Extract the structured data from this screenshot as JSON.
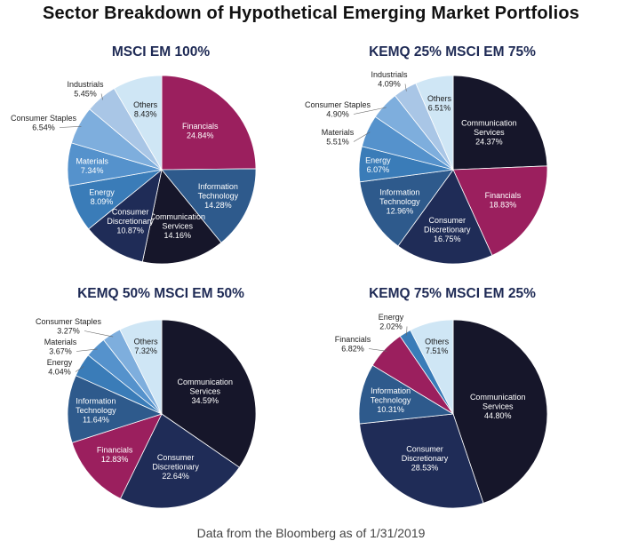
{
  "title": "Sector Breakdown of Hypothetical Emerging Market Portfolios",
  "footer": "Data from the Bloomberg as of 1/31/2019",
  "colors": {
    "Financials": "#9b1f5e",
    "Information Technology": "#2e5a8c",
    "Communication Services": "#16162a",
    "Consumer Discretionary": "#1f2c57",
    "Energy": "#3a7cb8",
    "Materials": "#5592cc",
    "Consumer Staples": "#7eaedd",
    "Industrials": "#a9c6e6",
    "Others": "#cfe6f5"
  },
  "chart_data": [
    {
      "type": "pie",
      "title": "MSCI EM 100%",
      "slices": [
        {
          "name": "Financials",
          "label": [
            "Financials"
          ],
          "value": 24.84,
          "pct": "24.84%"
        },
        {
          "name": "Information Technology",
          "label": [
            "Information",
            "Technology"
          ],
          "value": 14.28,
          "pct": "14.28%"
        },
        {
          "name": "Communication Services",
          "label": [
            "Communication",
            "Services"
          ],
          "value": 14.16,
          "pct": "14.16%"
        },
        {
          "name": "Consumer Discretionary",
          "label": [
            "Consumer",
            "Discretionary"
          ],
          "value": 10.87,
          "pct": "10.87%"
        },
        {
          "name": "Energy",
          "label": [
            "Energy"
          ],
          "value": 8.09,
          "pct": "8.09%"
        },
        {
          "name": "Materials",
          "label": [
            "Materials"
          ],
          "value": 7.34,
          "pct": "7.34%"
        },
        {
          "name": "Consumer Staples",
          "label": [
            "Consumer Staples"
          ],
          "value": 6.54,
          "pct": "6.54%"
        },
        {
          "name": "Industrials",
          "label": [
            "Industrials"
          ],
          "value": 5.45,
          "pct": "5.45%"
        },
        {
          "name": "Others",
          "label": [
            "Others"
          ],
          "value": 8.43,
          "pct": "8.43%"
        }
      ]
    },
    {
      "type": "pie",
      "title": "KEMQ 25% MSCI EM 75%",
      "slices": [
        {
          "name": "Communication Services",
          "label": [
            "Communication",
            "Services"
          ],
          "value": 24.37,
          "pct": "24.37%"
        },
        {
          "name": "Financials",
          "label": [
            "Financials"
          ],
          "value": 18.83,
          "pct": "18.83%"
        },
        {
          "name": "Consumer Discretionary",
          "label": [
            "Consumer",
            "Discretionary"
          ],
          "value": 16.75,
          "pct": "16.75%"
        },
        {
          "name": "Information Technology",
          "label": [
            "Information",
            "Technology"
          ],
          "value": 12.96,
          "pct": "12.96%"
        },
        {
          "name": "Energy",
          "label": [
            "Energy"
          ],
          "value": 6.07,
          "pct": "6.07%"
        },
        {
          "name": "Materials",
          "label": [
            "Materials"
          ],
          "value": 5.51,
          "pct": "5.51%"
        },
        {
          "name": "Consumer Staples",
          "label": [
            "Consumer Staples"
          ],
          "value": 4.9,
          "pct": "4.90%"
        },
        {
          "name": "Industrials",
          "label": [
            "Industrials"
          ],
          "value": 4.09,
          "pct": "4.09%"
        },
        {
          "name": "Others",
          "label": [
            "Others"
          ],
          "value": 6.51,
          "pct": "6.51%"
        }
      ]
    },
    {
      "type": "pie",
      "title": "KEMQ 50% MSCI EM 50%",
      "slices": [
        {
          "name": "Communication Services",
          "label": [
            "Communication",
            "Services"
          ],
          "value": 34.59,
          "pct": "34.59%"
        },
        {
          "name": "Consumer Discretionary",
          "label": [
            "Consumer",
            "Discretionary"
          ],
          "value": 22.64,
          "pct": "22.64%"
        },
        {
          "name": "Financials",
          "label": [
            "Financials"
          ],
          "value": 12.83,
          "pct": "12.83%"
        },
        {
          "name": "Information Technology",
          "label": [
            "Information",
            "Technology"
          ],
          "value": 11.64,
          "pct": "11.64%"
        },
        {
          "name": "Energy",
          "label": [
            "Energy"
          ],
          "value": 4.04,
          "pct": "4.04%"
        },
        {
          "name": "Materials",
          "label": [
            "Materials"
          ],
          "value": 3.67,
          "pct": "3.67%"
        },
        {
          "name": "Consumer Staples",
          "label": [
            "Consumer Staples"
          ],
          "value": 3.27,
          "pct": "3.27%"
        },
        {
          "name": "Others",
          "label": [
            "Others"
          ],
          "value": 7.32,
          "pct": "7.32%"
        }
      ]
    },
    {
      "type": "pie",
      "title": "KEMQ 75% MSCI EM 25%",
      "slices": [
        {
          "name": "Communication Services",
          "label": [
            "Communication",
            "Services"
          ],
          "value": 44.8,
          "pct": "44.80%"
        },
        {
          "name": "Consumer Discretionary",
          "label": [
            "Consumer",
            "Discretionary"
          ],
          "value": 28.53,
          "pct": "28.53%"
        },
        {
          "name": "Information Technology",
          "label": [
            "Information",
            "Technology"
          ],
          "value": 10.31,
          "pct": "10.31%"
        },
        {
          "name": "Financials",
          "label": [
            "Financials"
          ],
          "value": 6.82,
          "pct": "6.82%"
        },
        {
          "name": "Energy",
          "label": [
            "Energy"
          ],
          "value": 2.02,
          "pct": "2.02%"
        },
        {
          "name": "Others",
          "label": [
            "Others"
          ],
          "value": 7.51,
          "pct": "7.51%"
        }
      ]
    }
  ]
}
